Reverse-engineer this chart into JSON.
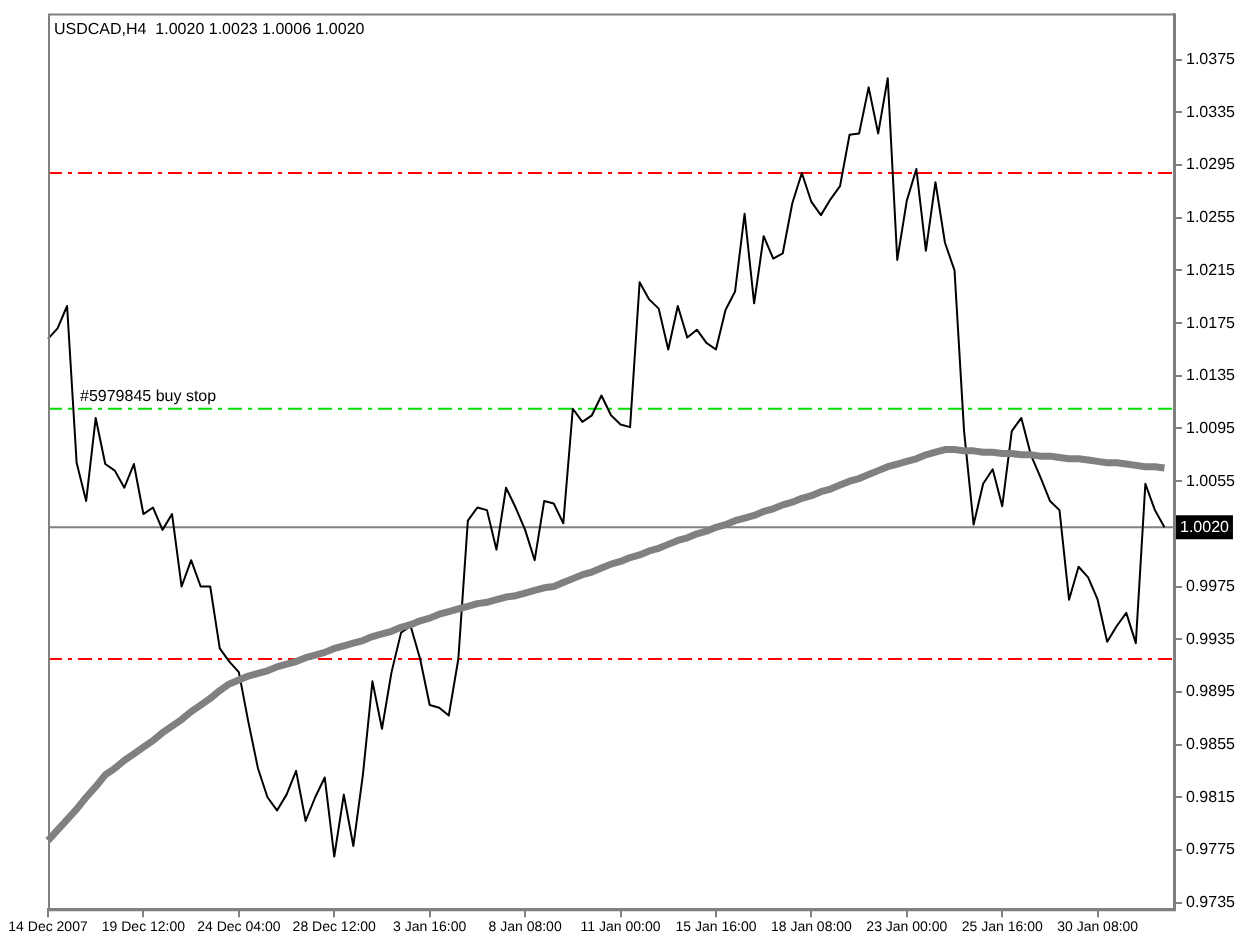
{
  "chart_data": {
    "type": "line",
    "title": "USDCAD,H4  1.0020 1.0023 1.0006 1.0020",
    "categories": [
      "14 Dec 2007",
      null,
      null,
      null,
      null,
      null,
      null,
      null,
      null,
      null,
      "19 Dec 12:00",
      null,
      null,
      null,
      null,
      null,
      null,
      null,
      null,
      null,
      "24 Dec 04:00",
      null,
      null,
      null,
      null,
      null,
      null,
      null,
      null,
      null,
      "28 Dec 12:00",
      null,
      null,
      null,
      null,
      null,
      null,
      null,
      null,
      null,
      "3 Jan 16:00",
      null,
      null,
      null,
      null,
      null,
      null,
      null,
      null,
      null,
      "8 Jan 08:00",
      null,
      null,
      null,
      null,
      null,
      null,
      null,
      null,
      null,
      "11 Jan 00:00",
      null,
      null,
      null,
      null,
      null,
      null,
      null,
      null,
      null,
      "15 Jan 16:00",
      null,
      null,
      null,
      null,
      null,
      null,
      null,
      null,
      null,
      "18 Jan 08:00",
      null,
      null,
      null,
      null,
      null,
      null,
      null,
      null,
      null,
      "23 Jan 00:00",
      null,
      null,
      null,
      null,
      null,
      null,
      null,
      null,
      null,
      "25 Jan 16:00",
      null,
      null,
      null,
      null,
      null,
      null,
      null,
      null,
      null,
      "30 Jan 08:00",
      null,
      null,
      null,
      null,
      null,
      null,
      null,
      null
    ],
    "ylim": [
      0.973,
      1.041
    ],
    "yticks": [
      0.9735,
      0.9775,
      0.9815,
      0.9855,
      0.9895,
      0.9935,
      0.9975,
      1.0055,
      1.0095,
      1.0135,
      1.0175,
      1.0215,
      1.0255,
      1.0295,
      1.0335,
      1.0375
    ],
    "grid": false,
    "legend": false,
    "marker": "none",
    "series": [
      {
        "color": "#000000",
        "values": [
          1.0163,
          1.0171,
          1.0188,
          1.0069,
          1.004,
          1.0103,
          1.0068,
          1.0063,
          1.005,
          1.0068,
          1.003,
          1.0035,
          1.0018,
          1.003,
          0.9975,
          0.9995,
          0.9975,
          0.9975,
          0.9928,
          0.9918,
          0.991,
          0.9872,
          0.9837,
          0.9815,
          0.9805,
          0.9817,
          0.9835,
          0.9797,
          0.9815,
          0.983,
          0.977,
          0.9817,
          0.9778,
          0.9832,
          0.9903,
          0.9867,
          0.991,
          0.994,
          0.9945,
          0.992,
          0.9885,
          0.9883,
          0.9877,
          0.992,
          1.0025,
          1.0035,
          1.0033,
          1.0003,
          1.005,
          1.0035,
          1.0018,
          0.9995,
          1.004,
          1.0038,
          1.0023,
          1.011,
          1.01,
          1.0105,
          1.012,
          1.0105,
          1.0098,
          1.0096,
          1.0206,
          1.0193,
          1.0186,
          1.0155,
          1.0188,
          1.0164,
          1.017,
          1.016,
          1.0155,
          1.0185,
          1.0199,
          1.0258,
          1.019,
          1.0241,
          1.0224,
          1.0228,
          1.0266,
          1.0289,
          1.0267,
          1.0257,
          1.0269,
          1.0279,
          1.0318,
          1.0319,
          1.0354,
          1.0319,
          1.0361,
          1.0223,
          1.0268,
          1.0292,
          1.023,
          1.0282,
          1.0236,
          1.0215,
          1.0093,
          1.0022,
          1.0053,
          1.0064,
          1.0036,
          1.0093,
          1.0103,
          1.0075,
          1.0058,
          1.004,
          1.0033,
          0.9965,
          0.999,
          0.9982,
          0.9965,
          0.9933,
          0.9945,
          0.9955,
          0.9932,
          1.0053,
          1.0033,
          1.002,
          null
        ]
      },
      {
        "color": "#808080",
        "values": [
          0.9782,
          0.979,
          0.9798,
          0.9806,
          0.9815,
          0.9823,
          0.9832,
          0.9837,
          0.9843,
          0.9848,
          0.9853,
          0.9858,
          0.9864,
          0.9869,
          0.9874,
          0.988,
          0.9885,
          0.989,
          0.9896,
          0.9901,
          0.9904,
          0.9907,
          0.9909,
          0.9911,
          0.9914,
          0.9916,
          0.9918,
          0.9921,
          0.9923,
          0.9925,
          0.9928,
          0.993,
          0.9932,
          0.9934,
          0.9937,
          0.9939,
          0.9941,
          0.9944,
          0.9946,
          0.9949,
          0.9951,
          0.9954,
          0.9956,
          0.9958,
          0.996,
          0.9962,
          0.9963,
          0.9965,
          0.9967,
          0.9968,
          0.997,
          0.9972,
          0.9974,
          0.9975,
          0.9978,
          0.9981,
          0.9984,
          0.9986,
          0.9989,
          0.9992,
          0.9994,
          0.9997,
          0.9999,
          1.0002,
          1.0004,
          1.0007,
          1.001,
          1.0012,
          1.0015,
          1.0017,
          1.002,
          1.0022,
          1.0025,
          1.0027,
          1.0029,
          1.0032,
          1.0034,
          1.0037,
          1.0039,
          1.0042,
          1.0044,
          1.0047,
          1.0049,
          1.0052,
          1.0055,
          1.0057,
          1.006,
          1.0063,
          1.0066,
          1.0068,
          1.007,
          1.0072,
          1.0075,
          1.0077,
          1.0079,
          1.0079,
          1.0078,
          1.0078,
          1.0077,
          1.0077,
          1.0076,
          1.0076,
          1.0075,
          1.0075,
          1.0074,
          1.0074,
          1.0073,
          1.0072,
          1.0072,
          1.0071,
          1.007,
          1.0069,
          1.0069,
          1.0068,
          1.0067,
          1.0066,
          1.0066,
          1.0065,
          null
        ]
      }
    ],
    "ref_lines": [
      {
        "axis": "y",
        "value": 1.0289,
        "color": "#ff0000",
        "line_style": "dashed"
      },
      {
        "axis": "y",
        "value": 1.011,
        "label": "#5979845 buy stop",
        "color": "#00e000",
        "line_style": "dashed"
      },
      {
        "axis": "y",
        "value": 0.992,
        "color": "#ff0000",
        "line_style": "dashed"
      },
      {
        "axis": "y",
        "value": 1.002,
        "label": "1.0020",
        "color": "#808080",
        "line_style": "solid"
      }
    ]
  }
}
